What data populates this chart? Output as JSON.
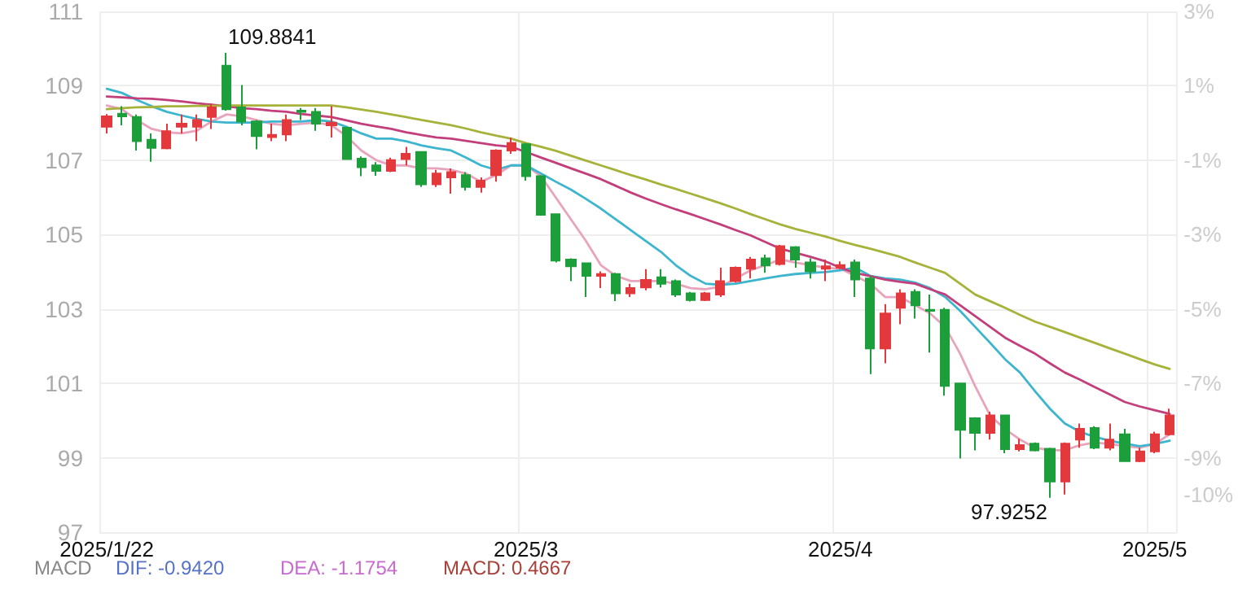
{
  "chart_data": {
    "type": "candlestick",
    "categories": [
      "2025/1/22",
      null,
      null,
      null,
      null,
      null,
      null,
      null,
      null,
      null,
      null,
      null,
      null,
      null,
      null,
      null,
      null,
      null,
      null,
      null,
      null,
      null,
      null,
      null,
      null,
      null,
      null,
      null,
      "2025/3",
      null,
      null,
      null,
      null,
      null,
      null,
      null,
      null,
      null,
      null,
      null,
      null,
      null,
      null,
      null,
      null,
      null,
      null,
      null,
      null,
      "2025/4",
      null,
      null,
      null,
      null,
      null,
      null,
      null,
      null,
      null,
      null,
      null,
      null,
      null,
      null,
      null,
      null,
      null,
      null,
      null,
      null,
      "2025/5",
      null
    ],
    "ohlc": [
      [
        107.9,
        108.24,
        107.72,
        108.18
      ],
      [
        108.25,
        108.45,
        107.94,
        108.18
      ],
      [
        108.16,
        108.23,
        107.26,
        107.51
      ],
      [
        107.55,
        107.72,
        106.96,
        107.33
      ],
      [
        107.32,
        107.98,
        107.29,
        107.78
      ],
      [
        107.9,
        108.23,
        107.72,
        107.98
      ],
      [
        107.9,
        108.23,
        107.51,
        108.08
      ],
      [
        108.16,
        108.52,
        107.84,
        108.42
      ],
      [
        109.54,
        109.8841,
        108.33,
        108.37
      ],
      [
        108.42,
        109.02,
        107.94,
        108.04
      ],
      [
        108.04,
        108.08,
        107.29,
        107.65
      ],
      [
        107.62,
        107.98,
        107.51,
        107.68
      ],
      [
        107.69,
        108.23,
        107.51,
        108.08
      ],
      [
        108.33,
        108.4,
        108.08,
        108.3
      ],
      [
        108.3,
        108.4,
        107.79,
        107.98
      ],
      [
        107.94,
        108.45,
        107.61,
        108.01
      ],
      [
        107.87,
        107.9,
        107.03,
        107.03
      ],
      [
        107.04,
        107.1,
        106.57,
        106.81
      ],
      [
        106.86,
        106.95,
        106.58,
        106.71
      ],
      [
        106.71,
        107.07,
        106.68,
        107.0
      ],
      [
        107.03,
        107.36,
        106.86,
        107.17
      ],
      [
        107.22,
        107.22,
        106.28,
        106.35
      ],
      [
        106.35,
        106.74,
        106.28,
        106.64
      ],
      [
        106.54,
        106.78,
        106.1,
        106.68
      ],
      [
        106.6,
        106.68,
        106.18,
        106.28
      ],
      [
        106.28,
        106.54,
        106.13,
        106.45
      ],
      [
        106.6,
        107.29,
        106.42,
        107.26
      ],
      [
        107.26,
        107.61,
        107.17,
        107.46
      ],
      [
        107.43,
        107.46,
        106.45,
        106.57
      ],
      [
        106.57,
        106.6,
        105.53,
        105.53
      ],
      [
        105.55,
        105.55,
        104.25,
        104.3
      ],
      [
        104.33,
        104.36,
        103.75,
        104.15
      ],
      [
        104.23,
        104.25,
        103.32,
        103.89
      ],
      [
        103.89,
        104.01,
        103.56,
        103.94
      ],
      [
        103.94,
        103.97,
        103.21,
        103.42
      ],
      [
        103.42,
        103.68,
        103.32,
        103.56
      ],
      [
        103.58,
        104.07,
        103.5,
        103.78
      ],
      [
        103.85,
        104.07,
        103.58,
        103.68
      ],
      [
        103.75,
        103.79,
        103.32,
        103.39
      ],
      [
        103.42,
        103.46,
        103.2,
        103.24
      ],
      [
        103.24,
        103.46,
        103.21,
        103.42
      ],
      [
        103.39,
        104.11,
        103.32,
        103.75
      ],
      [
        103.75,
        104.14,
        103.71,
        104.11
      ],
      [
        104.08,
        104.4,
        103.82,
        104.33
      ],
      [
        104.36,
        104.46,
        103.97,
        104.17
      ],
      [
        104.21,
        104.72,
        104.17,
        104.69
      ],
      [
        104.66,
        104.69,
        104.11,
        104.33
      ],
      [
        104.25,
        104.36,
        103.82,
        104.01
      ],
      [
        104.08,
        104.33,
        103.75,
        104.15
      ],
      [
        104.11,
        104.28,
        104.07,
        104.18
      ],
      [
        104.25,
        104.33,
        103.32,
        103.79
      ],
      [
        103.82,
        103.89,
        101.25,
        101.94
      ],
      [
        101.94,
        103.13,
        101.54,
        102.88
      ],
      [
        103.03,
        103.53,
        102.59,
        103.42
      ],
      [
        103.46,
        103.53,
        102.74,
        103.1
      ],
      [
        102.98,
        103.39,
        101.83,
        102.95
      ],
      [
        102.98,
        103.03,
        100.67,
        100.93
      ],
      [
        101.0,
        101.0,
        98.98,
        99.75
      ],
      [
        100.06,
        100.09,
        99.2,
        99.67
      ],
      [
        99.67,
        100.24,
        99.49,
        100.14
      ],
      [
        100.14,
        100.14,
        99.12,
        99.23
      ],
      [
        99.23,
        99.51,
        99.17,
        99.34
      ],
      [
        99.38,
        99.41,
        99.17,
        99.2
      ],
      [
        99.24,
        99.27,
        97.9252,
        98.36
      ],
      [
        98.36,
        99.41,
        98.01,
        99.38
      ],
      [
        99.49,
        99.92,
        99.27,
        99.78
      ],
      [
        99.8,
        99.85,
        99.23,
        99.27
      ],
      [
        99.27,
        99.92,
        99.2,
        99.49
      ],
      [
        99.63,
        99.78,
        98.91,
        98.91
      ],
      [
        98.91,
        99.27,
        98.88,
        99.17
      ],
      [
        99.17,
        99.7,
        99.12,
        99.63
      ],
      [
        99.63,
        100.32,
        99.6,
        100.14
      ]
    ],
    "colors": [
      "#e4393c",
      "#1c9e3b",
      "#1c9e3b",
      "#1c9e3b",
      "#e4393c",
      "#e4393c",
      "#e4393c",
      "#e4393c",
      "#1c9e3b",
      "#1c9e3b",
      "#1c9e3b",
      "#e4393c",
      "#e4393c",
      "#1c9e3b",
      "#1c9e3b",
      "#e4393c",
      "#1c9e3b",
      "#1c9e3b",
      "#1c9e3b",
      "#e4393c",
      "#e4393c",
      "#1c9e3b",
      "#e4393c",
      "#e4393c",
      "#1c9e3b",
      "#e4393c",
      "#e4393c",
      "#e4393c",
      "#1c9e3b",
      "#1c9e3b",
      "#1c9e3b",
      "#1c9e3b",
      "#1c9e3b",
      "#e4393c",
      "#1c9e3b",
      "#e4393c",
      "#e4393c",
      "#1c9e3b",
      "#1c9e3b",
      "#1c9e3b",
      "#e4393c",
      "#e4393c",
      "#e4393c",
      "#e4393c",
      "#1c9e3b",
      "#e4393c",
      "#1c9e3b",
      "#1c9e3b",
      "#e4393c",
      "#e4393c",
      "#1c9e3b",
      "#1c9e3b",
      "#e4393c",
      "#e4393c",
      "#1c9e3b",
      "#1c9e3b",
      "#1c9e3b",
      "#1c9e3b",
      "#1c9e3b",
      "#e4393c",
      "#1c9e3b",
      "#e4393c",
      "#1c9e3b",
      "#1c9e3b",
      "#e4393c",
      "#e4393c",
      "#1c9e3b",
      "#e4393c",
      "#1c9e3b",
      "#e4393c",
      "#e4393c",
      "#e4393c"
    ],
    "series": [
      {
        "type": "line",
        "color": "#e8a3bd",
        "values": [
          108.47,
          108.37,
          108.08,
          107.84,
          107.75,
          107.72,
          107.79,
          108.04,
          108.23,
          108.18,
          108.08,
          107.98,
          107.94,
          107.98,
          108.01,
          107.94,
          107.65,
          107.26,
          107.0,
          106.86,
          106.86,
          106.78,
          106.78,
          106.74,
          106.64,
          106.42,
          106.6,
          106.86,
          106.86,
          106.57,
          105.99,
          105.41,
          104.83,
          104.18,
          103.89,
          103.75,
          103.75,
          103.75,
          103.68,
          103.56,
          103.53,
          103.6,
          103.82,
          104.04,
          104.18,
          104.33,
          104.25,
          104.18,
          104.11,
          104.08,
          103.89,
          103.68,
          103.32,
          103.32,
          103.1,
          102.88,
          102.52,
          101.8,
          100.93,
          100.14,
          99.77,
          99.49,
          99.27,
          99.2,
          99.2,
          99.34,
          99.41,
          99.37,
          99.31,
          99.27,
          99.37,
          99.63
        ]
      },
      {
        "type": "line",
        "color": "#3db5cf",
        "values": [
          108.92,
          108.81,
          108.62,
          108.45,
          108.3,
          108.2,
          108.11,
          108.04,
          108.01,
          108.01,
          108.01,
          108.04,
          108.04,
          108.04,
          108.08,
          108.04,
          107.9,
          107.72,
          107.58,
          107.58,
          107.51,
          107.4,
          107.32,
          107.26,
          107.07,
          106.86,
          106.74,
          106.86,
          106.86,
          106.64,
          106.42,
          106.21,
          105.96,
          105.7,
          105.41,
          105.12,
          104.83,
          104.54,
          104.18,
          103.89,
          103.68,
          103.65,
          103.68,
          103.75,
          103.82,
          103.89,
          103.94,
          103.97,
          103.99,
          104.04,
          104.11,
          103.89,
          103.82,
          103.79,
          103.71,
          103.56,
          103.32,
          102.95,
          102.52,
          102.09,
          101.65,
          101.29,
          100.79,
          100.32,
          99.92,
          99.7,
          99.56,
          99.46,
          99.38,
          99.31,
          99.37,
          99.46
        ]
      },
      {
        "type": "line",
        "color": "#c23f7c",
        "values": [
          108.71,
          108.69,
          108.66,
          108.65,
          108.62,
          108.58,
          108.53,
          108.49,
          108.45,
          108.4,
          108.37,
          108.33,
          108.3,
          108.24,
          108.2,
          108.16,
          108.07,
          107.98,
          107.91,
          107.84,
          107.75,
          107.68,
          107.61,
          107.58,
          107.52,
          107.46,
          107.4,
          107.36,
          107.22,
          107.07,
          106.93,
          106.78,
          106.64,
          106.49,
          106.31,
          106.13,
          105.97,
          105.82,
          105.68,
          105.55,
          105.41,
          105.27,
          105.12,
          104.98,
          104.8,
          104.62,
          104.51,
          104.4,
          104.28,
          104.11,
          103.97,
          103.88,
          103.79,
          103.73,
          103.68,
          103.53,
          103.39,
          103.1,
          102.81,
          102.52,
          102.23,
          102.01,
          101.8,
          101.54,
          101.29,
          101.1,
          100.9,
          100.7,
          100.5,
          100.38,
          100.28,
          100.18
        ]
      },
      {
        "type": "line",
        "color": "#a6b23a",
        "values": [
          108.37,
          108.4,
          108.42,
          108.43,
          108.45,
          108.45,
          108.46,
          108.46,
          108.47,
          108.47,
          108.47,
          108.47,
          108.47,
          108.47,
          108.47,
          108.47,
          108.42,
          108.36,
          108.3,
          108.23,
          108.16,
          108.08,
          108.01,
          107.94,
          107.85,
          107.75,
          107.66,
          107.58,
          107.46,
          107.36,
          107.25,
          107.12,
          106.99,
          106.86,
          106.73,
          106.6,
          106.48,
          106.35,
          106.23,
          106.1,
          105.97,
          105.84,
          105.7,
          105.55,
          105.41,
          105.27,
          105.15,
          105.05,
          104.95,
          104.83,
          104.72,
          104.62,
          104.51,
          104.4,
          104.25,
          104.11,
          103.97,
          103.68,
          103.39,
          103.21,
          103.03,
          102.84,
          102.66,
          102.52,
          102.38,
          102.23,
          102.09,
          101.94,
          101.8,
          101.65,
          101.51,
          101.39
        ]
      }
    ],
    "ylim": [
      97,
      111
    ],
    "yticks": [
      97,
      99,
      101,
      103,
      105,
      107,
      109,
      111
    ],
    "y2lim": [
      -11,
      3
    ],
    "y2ticks": [
      {
        "value": 3,
        "label": "3%"
      },
      {
        "value": 1,
        "label": "1%"
      },
      {
        "value": -1,
        "label": "-1%"
      },
      {
        "value": -3,
        "label": "-3%"
      },
      {
        "value": -5,
        "label": "-5%"
      },
      {
        "value": -7,
        "label": "-7%"
      },
      {
        "value": -9,
        "label": "-9%"
      },
      {
        "value": -10,
        "label": "-10%"
      }
    ],
    "grid": true,
    "marker": "none",
    "annotations": [
      "109.8841",
      "97.9252",
      "MACD",
      "DIF: -0.9420",
      "DEA: -1.1754",
      "MACD: 0.4667"
    ]
  }
}
